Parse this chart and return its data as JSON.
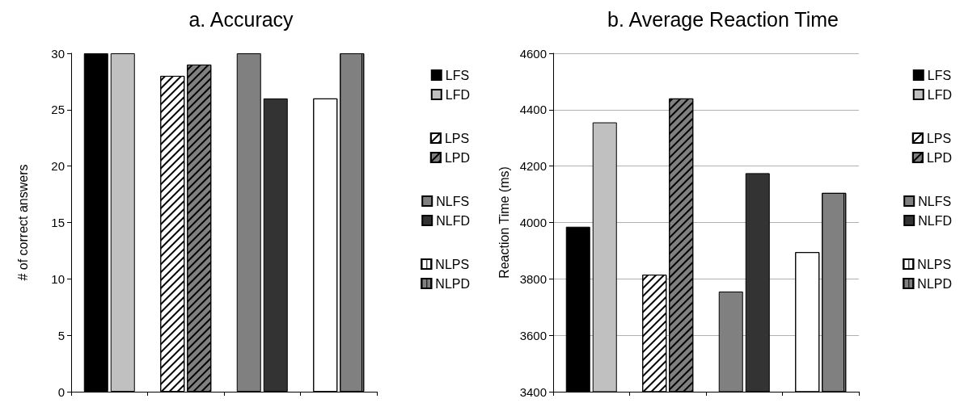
{
  "chart_data": [
    {
      "type": "bar",
      "title": "a. Accuracy",
      "ylabel": "# of correct answers",
      "categories": [
        null,
        null,
        null,
        null
      ],
      "series": [
        {
          "name": "LFS",
          "color": "#000000",
          "values": [
            30,
            null,
            null,
            null
          ]
        },
        {
          "name": "LFD",
          "color": "#c0c0c0",
          "values": [
            30,
            null,
            null,
            null
          ]
        },
        {
          "name": "LPS",
          "color": "#ffffff",
          "values": [
            null,
            28,
            null,
            null
          ]
        },
        {
          "name": "LPD",
          "color": "#808080",
          "values": [
            null,
            29,
            null,
            null
          ]
        },
        {
          "name": "NLFS",
          "color": "#808080",
          "values": [
            null,
            null,
            30,
            null
          ]
        },
        {
          "name": "NLFD",
          "color": "#333333",
          "values": [
            null,
            null,
            26,
            null
          ]
        },
        {
          "name": "NLPS",
          "color": "#ffffff",
          "values": [
            null,
            null,
            null,
            26
          ]
        },
        {
          "name": "NLPD",
          "color": "#808080",
          "values": [
            null,
            null,
            null,
            30
          ]
        }
      ],
      "ylim": [
        0,
        30
      ],
      "yticks": [
        0,
        5,
        10,
        15,
        20,
        25,
        30
      ],
      "grid": false,
      "legend": "right"
    },
    {
      "type": "bar",
      "title": "b. Average Reaction Time",
      "ylabel": "Reaction Time (ms)",
      "categories": [
        null,
        null,
        null,
        null
      ],
      "series": [
        {
          "name": "LFS",
          "color": "#000000",
          "values": [
            3985,
            null,
            null,
            null
          ]
        },
        {
          "name": "LFD",
          "color": "#c0c0c0",
          "values": [
            4355,
            null,
            null,
            null
          ]
        },
        {
          "name": "LPS",
          "color": "#ffffff",
          "values": [
            null,
            3815,
            null,
            null
          ]
        },
        {
          "name": "LPD",
          "color": "#808080",
          "values": [
            null,
            4440,
            null,
            null
          ]
        },
        {
          "name": "NLFS",
          "color": "#808080",
          "values": [
            null,
            null,
            3755,
            null
          ]
        },
        {
          "name": "NLFD",
          "color": "#333333",
          "values": [
            null,
            null,
            4175,
            null
          ]
        },
        {
          "name": "NLPS",
          "color": "#ffffff",
          "values": [
            null,
            null,
            null,
            3895
          ]
        },
        {
          "name": "NLPD",
          "color": "#808080",
          "values": [
            null,
            null,
            null,
            4105
          ]
        }
      ],
      "ylim": [
        3400,
        4600
      ],
      "yticks": [
        3400,
        3600,
        3800,
        4000,
        4200,
        4400,
        4600
      ],
      "grid": true,
      "legend": "right"
    }
  ]
}
